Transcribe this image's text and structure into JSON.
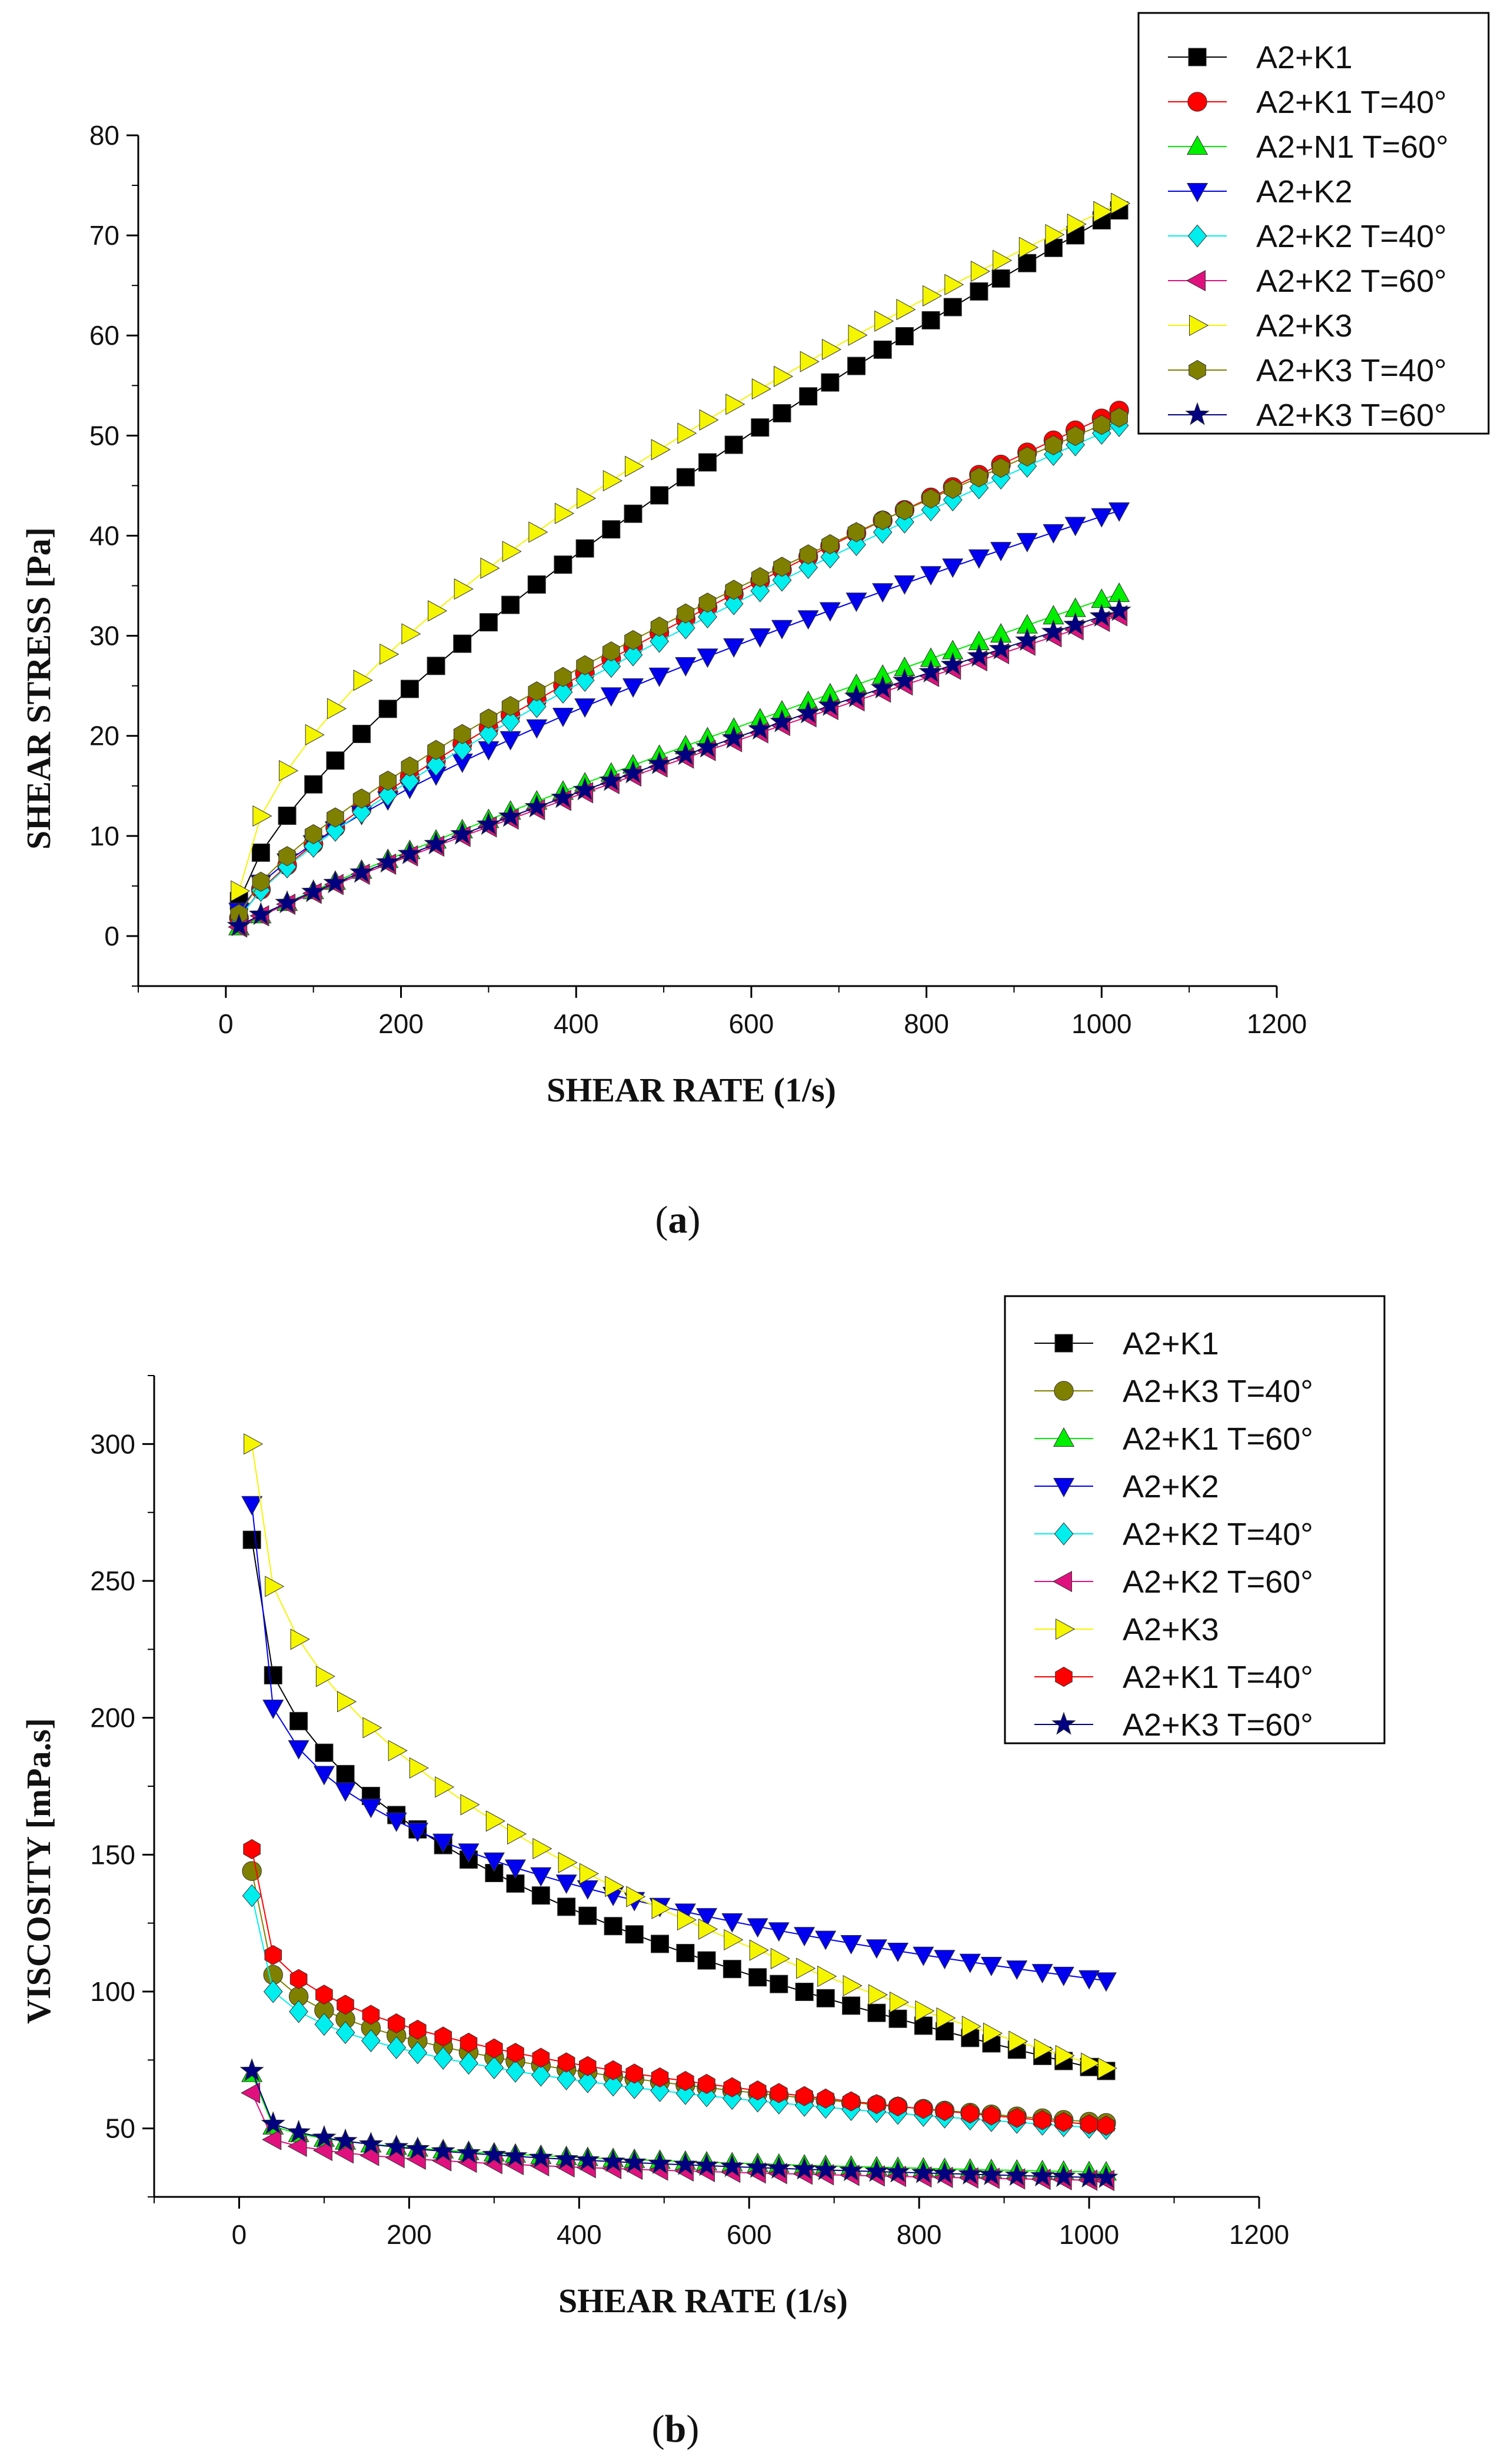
{
  "chart_data": [
    {
      "type": "line",
      "panel_label": "a",
      "xlabel": "SHEAR RATE (1/s)",
      "ylabel": "SHEAR STRESS [Pa]",
      "xlim": [
        -100,
        1200
      ],
      "ylim": [
        -5,
        80
      ],
      "xticks": [
        0,
        200,
        400,
        600,
        800,
        1000,
        1200
      ],
      "yticks": [
        0,
        10,
        20,
        30,
        40,
        50,
        60,
        70,
        80
      ],
      "legend_position": "top-right",
      "grid": false,
      "x": [
        15,
        40,
        70,
        100,
        125,
        155,
        185,
        210,
        240,
        270,
        300,
        325,
        355,
        385,
        410,
        440,
        465,
        495,
        525,
        550,
        580,
        610,
        635,
        665,
        690,
        720,
        750,
        775,
        805,
        830,
        860,
        885,
        915,
        945,
        970,
        1000,
        1020
      ],
      "series": [
        {
          "name": "A2+K1",
          "color": "#000000",
          "marker": "square",
          "y0": 3.5,
          "y1": 72.5,
          "exponent": 0.72
        },
        {
          "name": "A2+K1 T=40°",
          "color": "#ff0000",
          "marker": "circle",
          "y0": 1.8,
          "y1": 52.5,
          "exponent": 0.78
        },
        {
          "name": "A2+N1 T=60°",
          "color": "#00ee00",
          "marker": "triangle-up",
          "y0": 0.9,
          "y1": 34.2,
          "exponent": 0.9
        },
        {
          "name": "A2+K2",
          "color": "#0000ee",
          "marker": "triangle-down",
          "y0": 2.5,
          "y1": 42.5,
          "exponent": 0.72
        },
        {
          "name": "A2+K2 T=40°",
          "color": "#00eeee",
          "marker": "diamond",
          "y0": 1.8,
          "y1": 51.0,
          "exponent": 0.78
        },
        {
          "name": "A2+K2 T=60°",
          "color": "#e0117f",
          "marker": "triangle-left",
          "y0": 0.9,
          "y1": 32.0,
          "exponent": 0.9
        },
        {
          "name": "A2+K3",
          "color": "#f5f500",
          "marker": "triangle-right",
          "y0": 4.5,
          "y1": 73.2,
          "exponent": 0.6
        },
        {
          "name": "A2+K3 T=40°",
          "color": "#808000",
          "marker": "hexagon",
          "y0": 2.2,
          "y1": 51.8,
          "exponent": 0.74
        },
        {
          "name": "A2+K3 T=60°",
          "color": "#000080",
          "marker": "star",
          "y0": 1.0,
          "y1": 32.5,
          "exponent": 0.9
        }
      ]
    },
    {
      "type": "line",
      "panel_label": "b",
      "xlabel": "SHEAR RATE (1/s)",
      "ylabel": "VISCOSITY [mPa.s]",
      "xlim": [
        -100,
        1200
      ],
      "ylim": [
        25,
        325
      ],
      "xticks": [
        0,
        200,
        400,
        600,
        800,
        1000,
        1200
      ],
      "yticks": [
        50,
        100,
        150,
        200,
        250,
        300
      ],
      "legend_position": "top-right",
      "grid": false,
      "x": [
        15,
        40,
        70,
        100,
        125,
        155,
        185,
        210,
        240,
        270,
        300,
        325,
        355,
        385,
        410,
        440,
        465,
        495,
        525,
        550,
        580,
        610,
        635,
        665,
        690,
        720,
        750,
        775,
        805,
        830,
        860,
        885,
        915,
        945,
        970,
        1000,
        1020
      ],
      "series": [
        {
          "name": "A2+K1",
          "color": "#000000",
          "marker": "square",
          "y0": 265,
          "y1": 71,
          "exponent": 0.37
        },
        {
          "name": "A2+K3 T=40°",
          "color": "#808000",
          "marker": "circle",
          "y0": 144,
          "y1": 52,
          "exponent": 0.24
        },
        {
          "name": "A2+K1 T=60°",
          "color": "#00ee00",
          "marker": "triangle-up",
          "y0": 70,
          "y1": 34,
          "exponent": 0.17
        },
        {
          "name": "A2+K2",
          "color": "#0000ee",
          "marker": "triangle-down",
          "y0": 278,
          "y1": 104,
          "exponent": 0.23
        },
        {
          "name": "A2+K2 T=40°",
          "color": "#00eeee",
          "marker": "diamond",
          "y0": 135,
          "y1": 50,
          "exponent": 0.24
        },
        {
          "name": "A2+K2 T=60°",
          "color": "#e0117f",
          "marker": "triangle-left",
          "y0": 63,
          "y1": 31,
          "exponent": 0.17
        },
        {
          "name": "A2+K3",
          "color": "#f5f500",
          "marker": "triangle-right",
          "y0": 300,
          "y1": 72,
          "exponent": 0.4
        },
        {
          "name": "A2+K1 T=40°",
          "color": "#ff0000",
          "marker": "hexagon",
          "y0": 152,
          "y1": 51,
          "exponent": 0.26
        },
        {
          "name": "A2+K3 T=60°",
          "color": "#000080",
          "marker": "star",
          "y0": 71,
          "y1": 32,
          "exponent": 0.19
        }
      ]
    }
  ]
}
